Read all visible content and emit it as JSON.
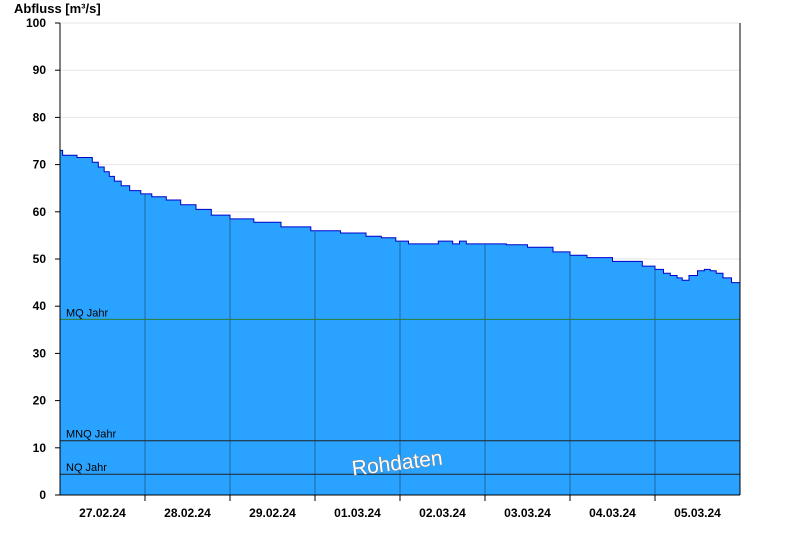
{
  "chart_data": {
    "type": "area",
    "ylabel": "Abfluss [m³/s]",
    "ylim": [
      0,
      100
    ],
    "yticks": [
      0,
      10,
      20,
      30,
      40,
      50,
      60,
      70,
      80,
      90,
      100
    ],
    "x_days": [
      "27.02.24",
      "28.02.24",
      "29.02.24",
      "01.03.24",
      "02.03.24",
      "03.03.24",
      "04.03.24",
      "05.03.24"
    ],
    "x_range_days": [
      -1.0,
      7.0
    ],
    "grid": "horizontal-light",
    "series": [
      {
        "fill_color": "#29a3ff",
        "line_color": "#0000cc",
        "x": [
          -1.0,
          -0.97,
          -0.8,
          -0.62,
          -0.55,
          -0.48,
          -0.42,
          -0.36,
          -0.28,
          -0.18,
          -0.05,
          0.08,
          0.25,
          0.42,
          0.6,
          0.78,
          1.0,
          1.28,
          1.6,
          1.95,
          2.3,
          2.6,
          2.78,
          2.95,
          3.1,
          3.3,
          3.45,
          3.62,
          3.7,
          3.78,
          3.95,
          4.1,
          4.25,
          4.5,
          4.8,
          5.0,
          5.2,
          5.5,
          5.85,
          6.0,
          6.1,
          6.18,
          6.26,
          6.32,
          6.4,
          6.5,
          6.58,
          6.65,
          6.72,
          6.8,
          6.9,
          7.0
        ],
        "y": [
          73,
          72,
          71.5,
          70.5,
          69.5,
          68.5,
          67.5,
          66.5,
          65.5,
          64.5,
          63.8,
          63.2,
          62.5,
          61.5,
          60.5,
          59.3,
          58.5,
          57.8,
          56.8,
          56.0,
          55.5,
          54.8,
          54.5,
          53.8,
          53.2,
          53.2,
          53.8,
          53.2,
          53.8,
          53.2,
          53.2,
          53.2,
          53.0,
          52.5,
          51.5,
          50.8,
          50.3,
          49.5,
          48.5,
          47.8,
          47.0,
          46.5,
          46.0,
          45.5,
          46.5,
          47.5,
          47.8,
          47.5,
          47.0,
          46.0,
          45.0,
          45.0
        ]
      }
    ],
    "reference_lines": [
      {
        "label": "MQ Jahr",
        "value": 37.2,
        "color": "#2e7d32"
      },
      {
        "label": "MNQ Jahr",
        "value": 11.5,
        "color": "#222222"
      },
      {
        "label": "NQ Jahr",
        "value": 4.4,
        "color": "#222222"
      }
    ],
    "watermark": "Rohdaten"
  }
}
